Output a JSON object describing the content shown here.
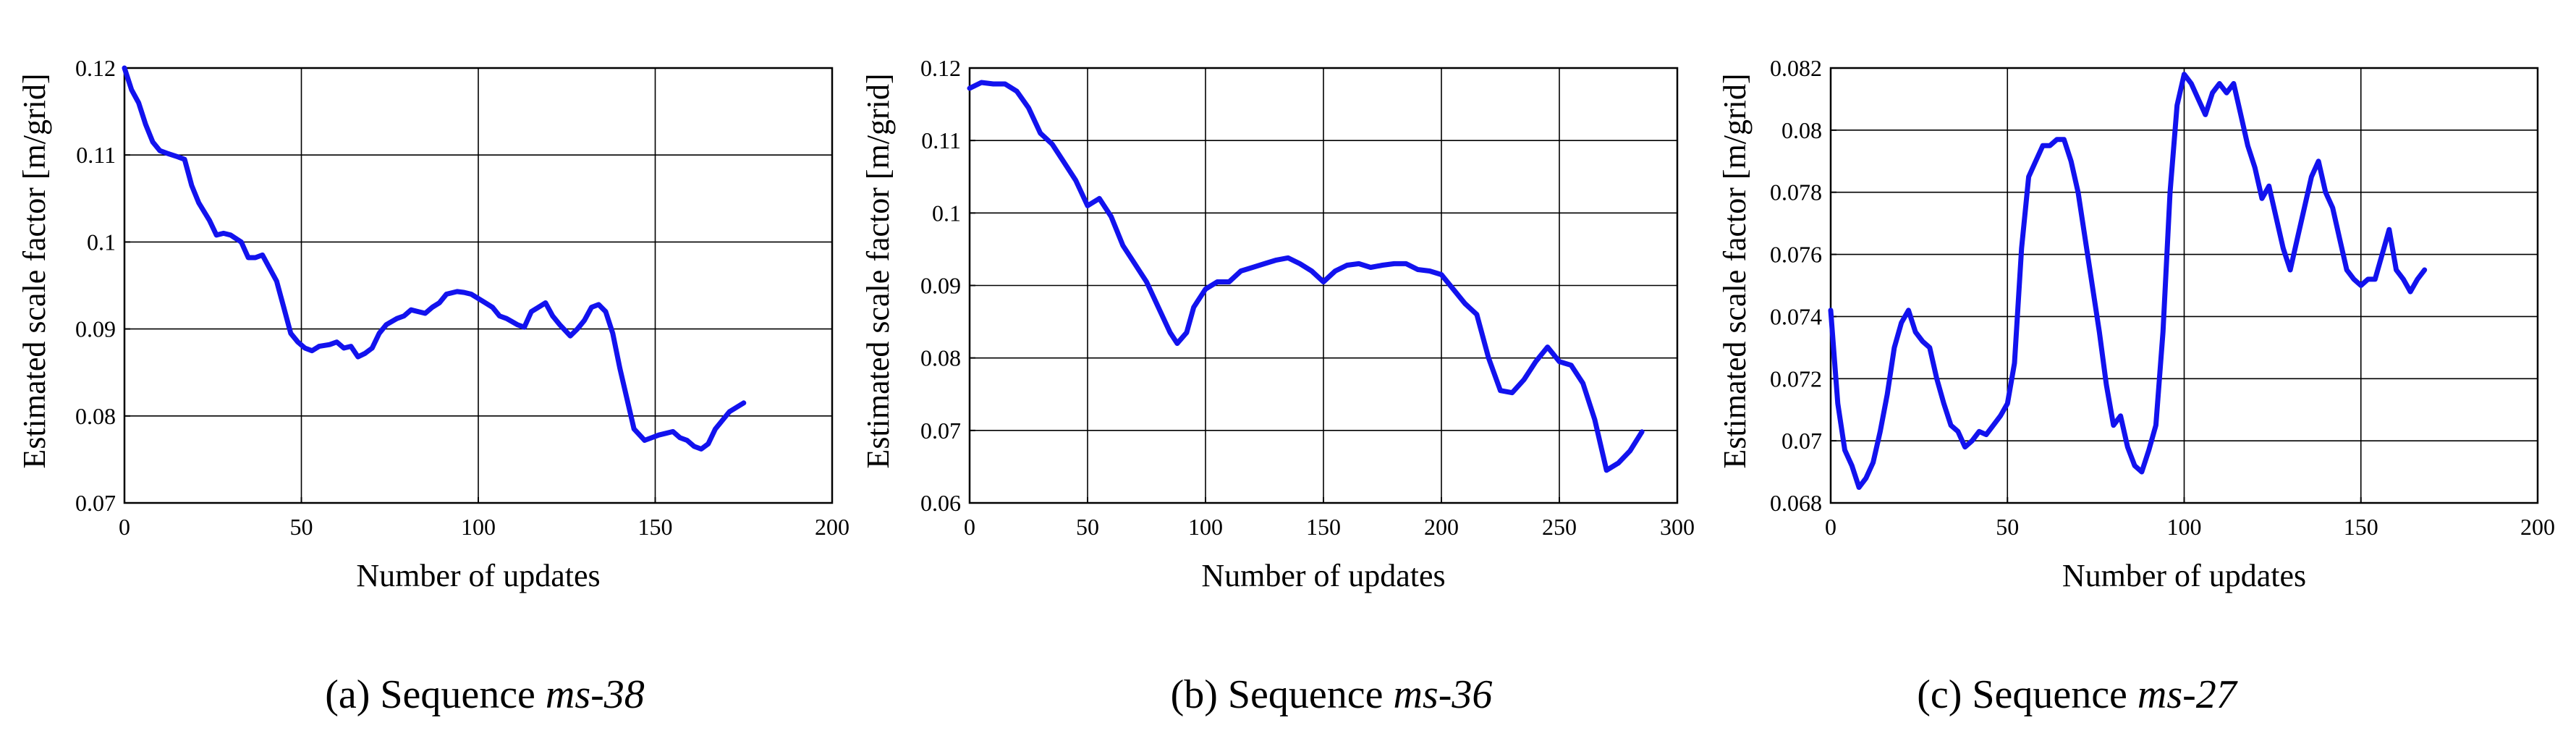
{
  "series_color": "#1212ee",
  "chart_data": [
    {
      "type": "line",
      "caption_prefix": "(a) Sequence ",
      "caption_seq": "ms-38",
      "xlabel": "Number of updates",
      "ylabel": "Estimated scale factor [m/grid]",
      "xlim": [
        0,
        200
      ],
      "ylim": [
        0.07,
        0.12
      ],
      "xticks": [
        "0",
        "50",
        "100",
        "150",
        "200"
      ],
      "yticks": [
        "0.07",
        "0.08",
        "0.09",
        "0.1",
        "0.11",
        "0.12"
      ],
      "grid": true,
      "series": [
        {
          "x": [
            0,
            2,
            4,
            6,
            8,
            10,
            12,
            15,
            17,
            19,
            21,
            24,
            26,
            28,
            30,
            33,
            35,
            37,
            39,
            41,
            43,
            45,
            47,
            49,
            51,
            53,
            55,
            58,
            60,
            62,
            64,
            66,
            68,
            70,
            72,
            74,
            77,
            79,
            81,
            83,
            85,
            87,
            89,
            91,
            94,
            96,
            98,
            100,
            102,
            104,
            106,
            108,
            111,
            113,
            115,
            117,
            119,
            121,
            123,
            126,
            128,
            130,
            132,
            134,
            136,
            138,
            140,
            142,
            144,
            147,
            149,
            151,
            153,
            155,
            157,
            159,
            161,
            163,
            165,
            167,
            169,
            171,
            173,
            175
          ],
          "y": [
            0.12,
            0.1175,
            0.116,
            0.1135,
            0.1115,
            0.1105,
            0.1102,
            0.1098,
            0.1095,
            0.1065,
            0.1045,
            0.1025,
            0.1008,
            0.101,
            0.1008,
            0.1,
            0.0982,
            0.0982,
            0.0985,
            0.097,
            0.0955,
            0.0925,
            0.0895,
            0.0885,
            0.0878,
            0.0875,
            0.088,
            0.0882,
            0.0885,
            0.0878,
            0.088,
            0.0868,
            0.0872,
            0.0878,
            0.0895,
            0.0905,
            0.0912,
            0.0915,
            0.0922,
            0.092,
            0.0918,
            0.0925,
            0.093,
            0.094,
            0.0943,
            0.0942,
            0.094,
            0.0935,
            0.093,
            0.0925,
            0.0915,
            0.0912,
            0.0905,
            0.0902,
            0.092,
            0.0925,
            0.093,
            0.0915,
            0.0905,
            0.0892,
            0.09,
            0.091,
            0.0925,
            0.0928,
            0.092,
            0.0895,
            0.0855,
            0.082,
            0.0785,
            0.0772,
            0.0775,
            0.0778,
            0.078,
            0.0782,
            0.0775,
            0.0772,
            0.0765,
            0.0762,
            0.0768,
            0.0785,
            0.0795,
            0.0805,
            0.081,
            0.0815
          ]
        }
      ]
    },
    {
      "type": "line",
      "caption_prefix": "(b) Sequence ",
      "caption_seq": "ms-36",
      "xlabel": "Number of updates",
      "ylabel": "Estimated scale factor [m/grid]",
      "xlim": [
        0,
        300
      ],
      "ylim": [
        0.06,
        0.12
      ],
      "xticks": [
        "0",
        "50",
        "100",
        "150",
        "200",
        "250",
        "300"
      ],
      "yticks": [
        "0.06",
        "0.07",
        "0.08",
        "0.09",
        "0.1",
        "0.11",
        "0.12"
      ],
      "grid": true,
      "series": [
        {
          "x": [
            0,
            5,
            10,
            15,
            20,
            25,
            30,
            35,
            40,
            45,
            50,
            55,
            60,
            65,
            70,
            75,
            80,
            85,
            88,
            92,
            95,
            100,
            105,
            110,
            115,
            120,
            125,
            130,
            135,
            140,
            145,
            150,
            155,
            160,
            165,
            170,
            175,
            180,
            185,
            190,
            195,
            200,
            205,
            210,
            215,
            220,
            225,
            230,
            235,
            240,
            245,
            250,
            255,
            260,
            265,
            270,
            275,
            280,
            285
          ],
          "y": [
            0.1172,
            0.118,
            0.1178,
            0.1178,
            0.1168,
            0.1145,
            0.111,
            0.1095,
            0.107,
            0.1045,
            0.101,
            0.102,
            0.0995,
            0.0955,
            0.093,
            0.0905,
            0.087,
            0.0835,
            0.082,
            0.0835,
            0.087,
            0.0895,
            0.0905,
            0.0905,
            0.092,
            0.0925,
            0.093,
            0.0935,
            0.0938,
            0.093,
            0.092,
            0.0905,
            0.092,
            0.0928,
            0.093,
            0.0925,
            0.0928,
            0.093,
            0.093,
            0.0922,
            0.092,
            0.0915,
            0.0895,
            0.0875,
            0.086,
            0.08,
            0.0755,
            0.0752,
            0.077,
            0.0795,
            0.0815,
            0.0795,
            0.079,
            0.0765,
            0.0715,
            0.0645,
            0.0655,
            0.0672,
            0.0698
          ]
        }
      ]
    },
    {
      "type": "line",
      "caption_prefix": "(c) Sequence ",
      "caption_seq": "ms-27",
      "xlabel": "Number of updates",
      "ylabel": "Estimated scale factor [m/grid]",
      "xlim": [
        0,
        200
      ],
      "ylim": [
        0.068,
        0.082
      ],
      "xticks": [
        "0",
        "50",
        "100",
        "150",
        "200"
      ],
      "yticks": [
        "0.068",
        "0.07",
        "0.072",
        "0.074",
        "0.076",
        "0.078",
        "0.08",
        "0.082"
      ],
      "grid": true,
      "series": [
        {
          "x": [
            0,
            2,
            4,
            6,
            8,
            10,
            12,
            14,
            16,
            18,
            20,
            22,
            24,
            26,
            28,
            30,
            32,
            34,
            36,
            38,
            40,
            42,
            44,
            46,
            48,
            50,
            52,
            54,
            56,
            58,
            60,
            62,
            64,
            66,
            68,
            70,
            72,
            74,
            76,
            78,
            80,
            82,
            84,
            86,
            88,
            90,
            92,
            94,
            96,
            98,
            100,
            102,
            104,
            106,
            108,
            110,
            112,
            114,
            116,
            118,
            120,
            122,
            124,
            126,
            128,
            130,
            132,
            134,
            136,
            138,
            140,
            142,
            144,
            146,
            148,
            150,
            152,
            154,
            156,
            158,
            160,
            162,
            164,
            166,
            168
          ],
          "y": [
            0.0742,
            0.0712,
            0.0697,
            0.0692,
            0.0685,
            0.0688,
            0.0693,
            0.0703,
            0.0715,
            0.073,
            0.0738,
            0.0742,
            0.0735,
            0.0732,
            0.073,
            0.072,
            0.0712,
            0.0705,
            0.0703,
            0.0698,
            0.07,
            0.0703,
            0.0702,
            0.0705,
            0.0708,
            0.0712,
            0.0725,
            0.0762,
            0.0785,
            0.079,
            0.0795,
            0.0795,
            0.0797,
            0.0797,
            0.079,
            0.078,
            0.0765,
            0.075,
            0.0735,
            0.0718,
            0.0705,
            0.0708,
            0.0698,
            0.0692,
            0.069,
            0.0697,
            0.0705,
            0.0735,
            0.078,
            0.0808,
            0.0818,
            0.0815,
            0.081,
            0.0805,
            0.0812,
            0.0815,
            0.0812,
            0.0815,
            0.0805,
            0.0795,
            0.0788,
            0.0778,
            0.0782,
            0.0772,
            0.0762,
            0.0755,
            0.0765,
            0.0775,
            0.0785,
            0.079,
            0.078,
            0.0775,
            0.0765,
            0.0755,
            0.0752,
            0.075,
            0.0752,
            0.0752,
            0.076,
            0.0768,
            0.0755,
            0.0752,
            0.0748,
            0.0752,
            0.0755
          ]
        }
      ]
    }
  ]
}
